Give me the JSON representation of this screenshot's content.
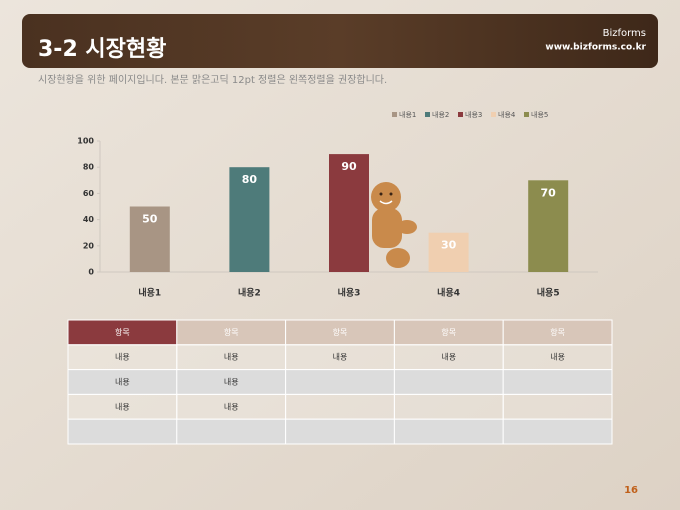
{
  "header": {
    "title": "3-2 시장현황",
    "brand": "Bizforms",
    "url": "www.bizforms.co.kr"
  },
  "subtitle": "시장현황을 위한 페이지입니다. 본문 맑은고딕 12pt 정렬은 왼쪽정렬을 권장합니다.",
  "chart_data": {
    "type": "bar",
    "categories": [
      "내용1",
      "내용2",
      "내용3",
      "내용4",
      "내용5"
    ],
    "values": [
      50,
      80,
      90,
      30,
      70
    ],
    "colors": [
      "#a89584",
      "#4e7b7a",
      "#8b3a3e",
      "#f0cfb0",
      "#8c8c4e"
    ],
    "ylim": [
      0,
      100
    ],
    "yticks": [
      0,
      20,
      40,
      60,
      80,
      100
    ],
    "grid": false,
    "legend": "top-right"
  },
  "table": {
    "header": [
      "항목",
      "항목",
      "항목",
      "항목",
      "항목"
    ],
    "rows": [
      [
        "내용",
        "내용",
        "내용",
        "내용",
        "내용"
      ],
      [
        "내용",
        "내용"
      ],
      [
        "내용",
        "내용"
      ],
      []
    ]
  },
  "page_number": "16"
}
